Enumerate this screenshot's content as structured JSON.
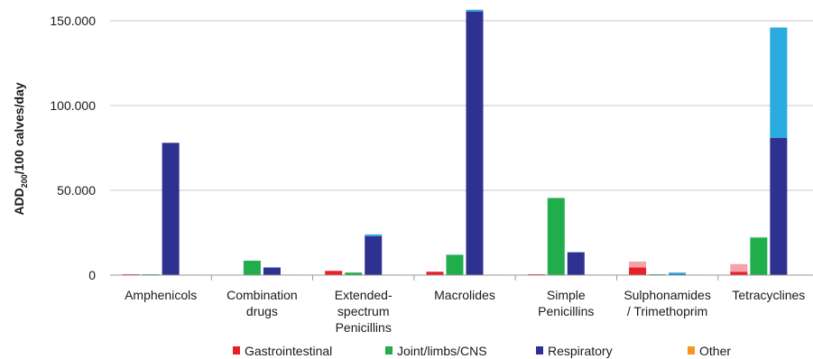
{
  "chart_data": {
    "type": "bar",
    "ylabel": {
      "main": "ADD",
      "sub": "200",
      "rest": "/100 calves/day"
    },
    "ylim": [
      0,
      150000
    ],
    "yticks": [
      {
        "value": 0,
        "label": "0"
      },
      {
        "value": 50000,
        "label": "50.000"
      },
      {
        "value": 100000,
        "label": "100.000"
      },
      {
        "value": 150000,
        "label": "150.000"
      }
    ],
    "grid": true,
    "legend_position": "bottom",
    "categories": [
      {
        "lines": [
          "Amphenicols"
        ]
      },
      {
        "lines": [
          "Combination",
          "drugs"
        ]
      },
      {
        "lines": [
          "Extended-",
          "spectrum",
          "Penicillins"
        ]
      },
      {
        "lines": [
          "Macrolides"
        ]
      },
      {
        "lines": [
          "Simple",
          "Penicillins"
        ]
      },
      {
        "lines": [
          "Sulphonamides",
          "/ Trimethoprim"
        ]
      },
      {
        "lines": [
          "Tetracyclines"
        ]
      }
    ],
    "series": [
      {
        "name": "Gastrointestinal",
        "color": "#e8202a",
        "top_color": "#f4a3a8",
        "values": [
          500,
          0,
          2500,
          2000,
          500,
          4500,
          2000
        ],
        "top_values": [
          0,
          0,
          0,
          0,
          0,
          3500,
          4500
        ]
      },
      {
        "name": "Joint/limbs/CNS",
        "color": "#1fae4b",
        "top_color": "#7fd49a",
        "values": [
          500,
          8500,
          1500,
          12000,
          45500,
          500,
          22000
        ],
        "top_values": [
          0,
          0,
          0,
          0,
          0,
          0,
          500
        ]
      },
      {
        "name": "Respiratory",
        "color": "#2e3192",
        "top_color": "#29abe2",
        "values": [
          78000,
          4500,
          23000,
          155500,
          13500,
          500,
          81000
        ],
        "top_values": [
          0,
          0,
          1000,
          1000,
          0,
          1000,
          65000
        ]
      },
      {
        "name": "Other",
        "color": "#f7941d",
        "top_color": "#fbc98a",
        "values": [
          300,
          300,
          300,
          300,
          300,
          300,
          300
        ],
        "top_values": [
          0,
          0,
          0,
          0,
          0,
          0,
          0
        ]
      }
    ]
  }
}
